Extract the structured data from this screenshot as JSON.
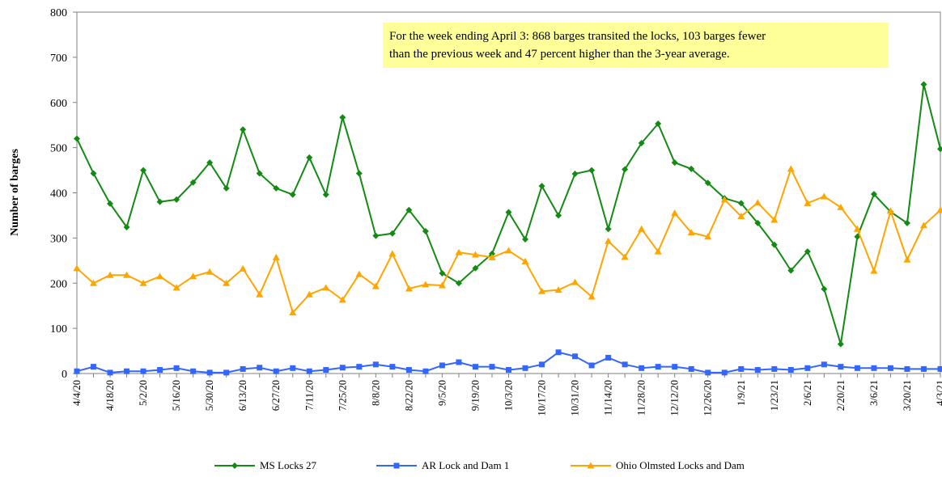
{
  "chart_data": {
    "type": "line",
    "y_label": "Number  of barges",
    "annotation": [
      "For the week ending April 3: 868 barges transited the locks, 103 barges fewer",
      "than the previous week and 47 percent higher than the 3-year average."
    ],
    "categories": [
      "4/4/20",
      null,
      "4/18/20",
      null,
      "5/2/20",
      null,
      "5/16/20",
      null,
      "5/30/20",
      null,
      "6/13/20",
      null,
      "6/27/20",
      null,
      "7/11/20",
      null,
      "7/25/20",
      null,
      "8/8/20",
      null,
      "8/22/20",
      null,
      "9/5/20",
      null,
      "9/19/20",
      null,
      "10/3/20",
      null,
      "10/17/20",
      null,
      "10/31/20",
      null,
      "11/14/20",
      null,
      "11/28/20",
      null,
      "12/12/20",
      null,
      "12/26/20",
      null,
      "1/9/21",
      null,
      "1/23/21",
      null,
      "2/6/21",
      null,
      "2/20/21",
      null,
      "3/6/21",
      null,
      "3/20/21",
      null,
      "4/3/21"
    ],
    "series": [
      {
        "name": "MS Locks 27",
        "color": "#138a13",
        "marker": "diamond",
        "values": [
          520,
          443,
          376,
          324,
          450,
          380,
          385,
          423,
          467,
          410,
          540,
          443,
          410,
          396,
          478,
          396,
          567,
          443,
          305,
          310,
          362,
          315,
          222,
          200,
          233,
          265,
          357,
          297,
          415,
          350,
          442,
          450,
          320,
          452,
          510,
          553,
          467,
          453,
          422,
          388,
          377,
          333,
          285,
          228,
          270,
          187,
          65,
          303,
          397,
          358,
          333,
          640,
          497
        ]
      },
      {
        "name": "AR Lock and Dam 1",
        "color": "#3366ff",
        "marker": "square",
        "values": [
          5,
          15,
          2,
          5,
          5,
          8,
          12,
          5,
          2,
          2,
          10,
          13,
          5,
          12,
          5,
          8,
          13,
          15,
          20,
          15,
          8,
          5,
          18,
          25,
          15,
          15,
          8,
          12,
          20,
          47,
          38,
          18,
          35,
          20,
          12,
          15,
          15,
          10,
          2,
          2,
          10,
          8,
          10,
          8,
          12,
          20,
          15,
          12,
          12,
          12,
          10,
          10,
          10
        ]
      },
      {
        "name": "Ohio Olmsted Locks and Dam",
        "color": "#ffa500",
        "marker": "triangle",
        "values": [
          233,
          200,
          218,
          218,
          200,
          215,
          190,
          215,
          225,
          200,
          232,
          175,
          257,
          135,
          175,
          190,
          163,
          220,
          193,
          265,
          188,
          197,
          195,
          268,
          263,
          257,
          272,
          248,
          182,
          185,
          202,
          170,
          293,
          258,
          320,
          270,
          355,
          312,
          303,
          385,
          348,
          378,
          340,
          453,
          377,
          392,
          368,
          320,
          227,
          360,
          252,
          328,
          362
        ]
      }
    ],
    "ylim": [
      0,
      800
    ],
    "yticks": [
      0,
      100,
      200,
      300,
      400,
      500,
      600,
      700,
      800
    ]
  }
}
